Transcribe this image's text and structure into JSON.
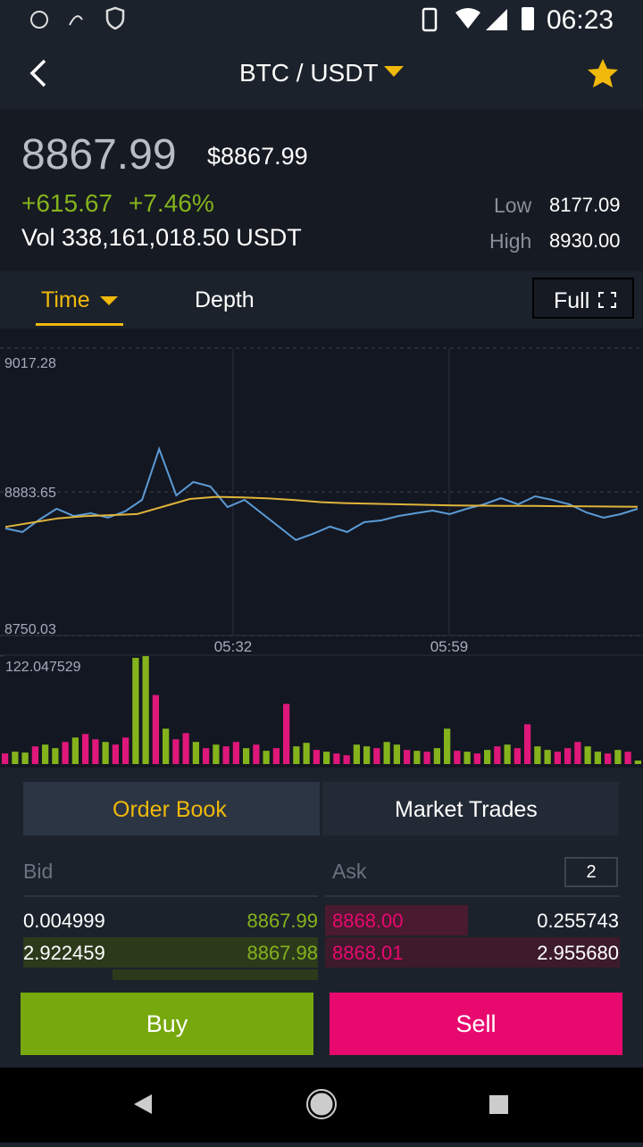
{
  "status_bar": {
    "time": "06:23"
  },
  "header": {
    "pair": "BTC / USDT"
  },
  "ticker": {
    "price": "8867.99",
    "price_usd": "$8867.99",
    "change": "+615.67",
    "change_pct": "+7.46%",
    "volume": "Vol 338,161,018.50 USDT",
    "low_label": "Low",
    "low": "8177.09",
    "high_label": "High",
    "high": "8930.00"
  },
  "tabs": {
    "time": "Time",
    "depth": "Depth",
    "full": "Full"
  },
  "chart": {
    "type": "line",
    "ylim": [
      8750.03,
      9017.28
    ],
    "yticks": [
      9017.28,
      8883.65,
      8750.03
    ],
    "xtick_labels": [
      "05:32",
      "05:59"
    ],
    "series": [
      {
        "color": "#5b9bd5",
        "values": [
          8849.6,
          8846.3,
          8857.9,
          8867.9,
          8861.2,
          8863.7,
          8859.6,
          8865.4,
          8876.2,
          8923.5,
          8880.3,
          8892.8,
          8888.6,
          8869.5,
          8876.2,
          8863.7,
          8851.3,
          8838.8,
          8844.6,
          8851.3,
          8846.3,
          8855.4,
          8857.1,
          8861.2,
          8863.7,
          8866.2,
          8862.9,
          8867.9,
          8872.0,
          8877.8,
          8872.0,
          8879.5,
          8876.2,
          8872.0,
          8864.5,
          8859.6,
          8862.9,
          8867.9
        ]
      },
      {
        "color": "#e0b43a",
        "values": [
          8851,
          8855,
          8859,
          8861,
          8862,
          8863,
          8870,
          8877,
          8879,
          8878.5,
          8877.5,
          8876,
          8874,
          8873,
          8872.5,
          8872,
          8871.5,
          8871,
          8870.8,
          8870.6,
          8870.5,
          8870.3,
          8870.2,
          8870,
          8869.8
        ]
      }
    ],
    "volume": {
      "ylim": [
        0,
        122.047529
      ],
      "yticks": [
        122.047529
      ],
      "values": [
        12,
        14,
        13,
        20,
        22,
        18,
        25,
        30,
        34,
        28,
        25,
        22,
        30,
        120,
        122,
        78,
        40,
        28,
        35,
        25,
        18,
        22,
        20,
        25,
        18,
        22,
        15,
        18,
        68,
        20,
        24,
        16,
        14,
        12,
        10,
        22,
        20,
        18,
        25,
        22,
        16,
        15,
        14,
        18,
        40,
        15,
        14,
        12,
        16,
        20,
        22,
        18,
        45,
        20,
        16,
        14,
        18,
        25,
        20,
        14,
        12,
        16,
        14,
        4
      ],
      "colors": [
        "#e0177a",
        "#84b31c",
        "#84b31c",
        "#e0177a",
        "#84b31c",
        "#84b31c",
        "#e0177a",
        "#84b31c",
        "#e0177a",
        "#e0177a",
        "#84b31c",
        "#e0177a",
        "#e0177a",
        "#84b31c",
        "#84b31c",
        "#e0177a",
        "#84b31c",
        "#e0177a",
        "#e0177a",
        "#84b31c",
        "#e0177a",
        "#84b31c",
        "#e0177a",
        "#e0177a",
        "#84b31c",
        "#e0177a",
        "#84b31c",
        "#e0177a",
        "#e0177a",
        "#84b31c",
        "#84b31c",
        "#e0177a",
        "#84b31c",
        "#e0177a",
        "#e0177a",
        "#84b31c",
        "#84b31c",
        "#e0177a",
        "#84b31c",
        "#84b31c",
        "#e0177a",
        "#84b31c",
        "#e0177a",
        "#84b31c",
        "#84b31c",
        "#e0177a",
        "#84b31c",
        "#e0177a",
        "#84b31c",
        "#e0177a",
        "#84b31c",
        "#e0177a",
        "#e0177a",
        "#84b31c",
        "#84b31c",
        "#e0177a",
        "#e0177a",
        "#e0177a",
        "#84b31c",
        "#84b31c",
        "#e0177a",
        "#84b31c",
        "#e0177a",
        "#84b31c"
      ]
    }
  },
  "order_tabs": {
    "order_book": "Order Book",
    "market_trades": "Market Trades"
  },
  "order_book": {
    "bid_label": "Bid",
    "ask_label": "Ask",
    "precision": "2",
    "bids": [
      [
        "0.004999",
        "8867.99"
      ],
      [
        "2.922459",
        "8867.98"
      ]
    ],
    "asks": [
      [
        "8868.00",
        "0.255743"
      ],
      [
        "8868.01",
        "2.955680"
      ]
    ]
  },
  "actions": {
    "buy": "Buy",
    "sell": "Sell"
  }
}
